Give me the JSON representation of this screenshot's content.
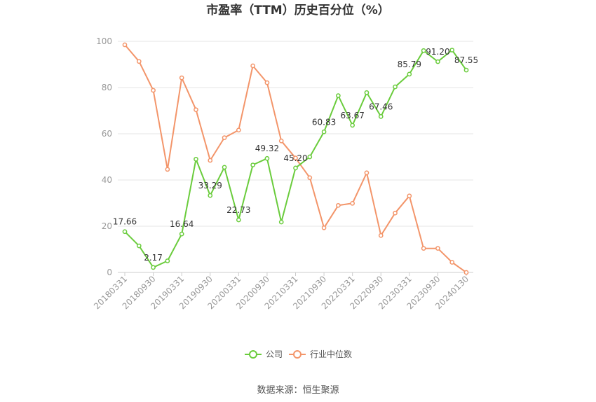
{
  "chart_data": {
    "type": "line",
    "title": "市盈率（TTM）历史百分位（%）",
    "source_label": "数据来源：",
    "source_name": "恒生聚源",
    "ylim": [
      0,
      100
    ],
    "yticks": [
      0,
      20,
      40,
      60,
      80,
      100
    ],
    "grid": true,
    "legend_position": "bottom",
    "x": [
      "20180331",
      "20180630",
      "20180930",
      "20181231",
      "20190331",
      "20190630",
      "20190930",
      "20191231",
      "20200331",
      "20200630",
      "20200930",
      "20201231",
      "20210331",
      "20210630",
      "20210930",
      "20211231",
      "20220331",
      "20220630",
      "20220930",
      "20221231",
      "20230331",
      "20230630",
      "20230930",
      "20231231",
      "20240130"
    ],
    "xtick_labels": [
      "20180331",
      "20180930",
      "20190331",
      "20190930",
      "20200331",
      "20200930",
      "20210331",
      "20210930",
      "20220331",
      "20220930",
      "20230331",
      "20230930",
      "20240130"
    ],
    "series": [
      {
        "name": "公司",
        "color": "#6acc3c",
        "values": [
          17.66,
          11.5,
          2.17,
          5.0,
          16.64,
          49.0,
          33.29,
          45.5,
          22.73,
          46.5,
          49.32,
          21.8,
          45.2,
          50.0,
          60.83,
          76.5,
          63.67,
          77.8,
          67.46,
          80.3,
          85.79,
          96.0,
          91.2,
          96.2,
          87.55
        ],
        "labels": {
          "0": "17.66",
          "2": "2.17",
          "4": "16.64",
          "6": "33.29",
          "8": "22.73",
          "10": "49.32",
          "12": "45.20",
          "14": "60.83",
          "16": "63.67",
          "18": "67.46",
          "20": "85.79",
          "22": "91.20",
          "24": "87.55"
        }
      },
      {
        "name": "行业中位数",
        "color": "#f3956a",
        "values": [
          98.5,
          91.3,
          78.8,
          44.6,
          84.2,
          70.4,
          48.5,
          58.3,
          61.6,
          89.4,
          82.1,
          56.9,
          49.5,
          41.0,
          19.3,
          29.0,
          29.9,
          43.1,
          16.0,
          25.7,
          33.1,
          10.4,
          10.4,
          4.4,
          0.0
        ]
      }
    ]
  }
}
